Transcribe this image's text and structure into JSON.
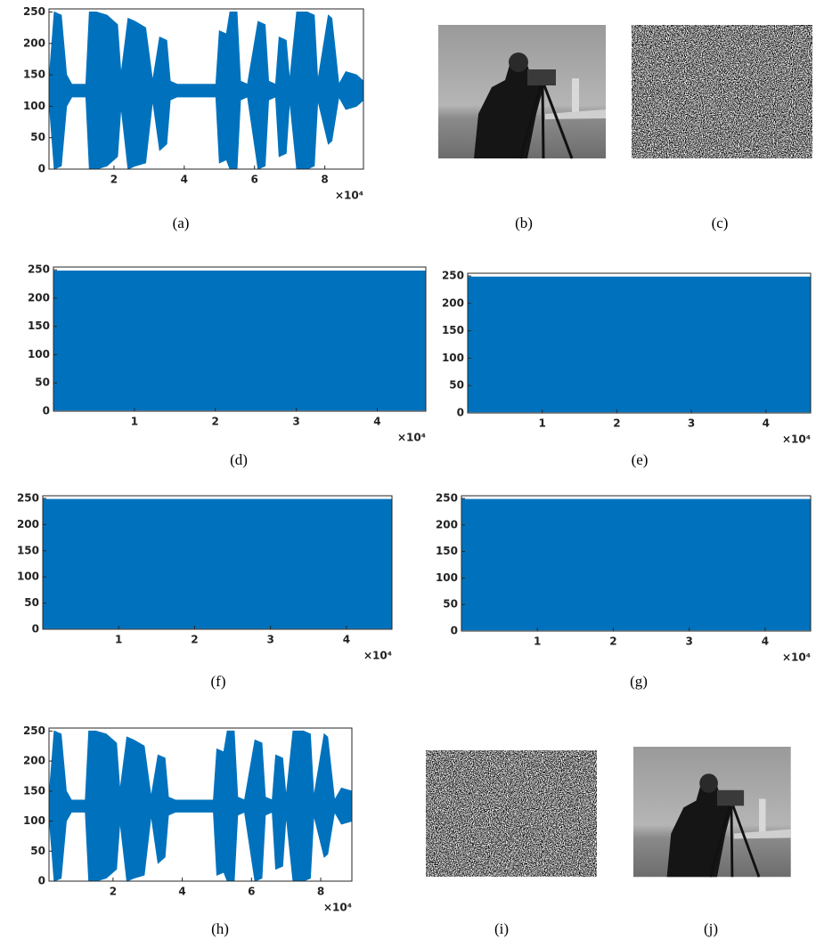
{
  "chart_data": [
    {
      "type": "envelope",
      "caption": "(a)",
      "color": "#0072bd",
      "x": [
        0.15,
        0.3,
        0.5,
        0.65,
        0.8,
        1.2,
        1.3,
        1.5,
        1.8,
        2.1,
        2.2,
        2.4,
        2.6,
        2.9,
        3.1,
        3.3,
        3.5,
        3.6,
        3.8,
        4.9,
        5.0,
        5.2,
        5.3,
        5.5,
        5.6,
        5.8,
        6.1,
        6.3,
        6.4,
        6.6,
        6.7,
        6.9,
        7.0,
        7.2,
        7.5,
        7.7,
        7.8,
        8.1,
        8.2,
        8.4,
        8.6,
        8.9,
        9.1
      ],
      "max": [
        140,
        250,
        245,
        150,
        135,
        135,
        250,
        250,
        245,
        230,
        150,
        240,
        235,
        225,
        140,
        210,
        205,
        140,
        135,
        135,
        220,
        215,
        250,
        250,
        140,
        135,
        235,
        230,
        140,
        135,
        210,
        205,
        140,
        250,
        250,
        245,
        140,
        245,
        240,
        135,
        155,
        150,
        140
      ],
      "min": [
        110,
        0,
        5,
        100,
        115,
        115,
        0,
        0,
        5,
        20,
        100,
        0,
        5,
        10,
        110,
        30,
        40,
        110,
        115,
        115,
        10,
        15,
        0,
        0,
        110,
        115,
        0,
        5,
        110,
        115,
        20,
        25,
        110,
        0,
        0,
        5,
        110,
        40,
        45,
        115,
        95,
        100,
        110
      ],
      "xlim": [
        0.15,
        9.1
      ],
      "ylim": [
        0,
        255
      ],
      "xticks": [
        2,
        4,
        6,
        8
      ],
      "yticks": [
        0,
        50,
        100,
        150,
        200,
        250
      ],
      "x_multiplier": "×10⁴"
    },
    {
      "type": "envelope",
      "caption": "(d)",
      "color": "#0072bd",
      "x": [
        0,
        4.6
      ],
      "max": [
        248,
        248
      ],
      "min": [
        2,
        2
      ],
      "xlim": [
        0,
        4.6
      ],
      "ylim": [
        0,
        255
      ],
      "xticks": [
        1,
        2,
        3,
        4
      ],
      "yticks": [
        0,
        50,
        100,
        150,
        200,
        250
      ],
      "x_multiplier": "×10⁴"
    },
    {
      "type": "envelope",
      "caption": "(e)",
      "color": "#0072bd",
      "x": [
        0,
        4.6
      ],
      "max": [
        248,
        248
      ],
      "min": [
        2,
        2
      ],
      "xlim": [
        0,
        4.6
      ],
      "ylim": [
        0,
        255
      ],
      "xticks": [
        1,
        2,
        3,
        4
      ],
      "yticks": [
        0,
        50,
        100,
        150,
        200,
        250
      ],
      "x_multiplier": "×10⁴"
    },
    {
      "type": "envelope",
      "caption": "(f)",
      "color": "#0072bd",
      "x": [
        0,
        4.6
      ],
      "max": [
        248,
        248
      ],
      "min": [
        2,
        2
      ],
      "xlim": [
        0,
        4.6
      ],
      "ylim": [
        0,
        255
      ],
      "xticks": [
        1,
        2,
        3,
        4
      ],
      "yticks": [
        0,
        50,
        100,
        150,
        200,
        250
      ],
      "x_multiplier": "×10⁴"
    },
    {
      "type": "envelope",
      "caption": "(g)",
      "color": "#0072bd",
      "x": [
        0,
        4.6
      ],
      "max": [
        248,
        248
      ],
      "min": [
        2,
        2
      ],
      "xlim": [
        0,
        4.6
      ],
      "ylim": [
        0,
        255
      ],
      "xticks": [
        1,
        2,
        3,
        4
      ],
      "yticks": [
        0,
        50,
        100,
        150,
        200,
        250
      ],
      "x_multiplier": "×10⁴"
    },
    {
      "type": "envelope",
      "caption": "(h)",
      "color": "#0072bd",
      "x": [
        0.15,
        0.3,
        0.5,
        0.65,
        0.8,
        1.2,
        1.3,
        1.5,
        1.8,
        2.1,
        2.2,
        2.4,
        2.6,
        2.9,
        3.1,
        3.3,
        3.5,
        3.6,
        3.8,
        4.9,
        5.0,
        5.2,
        5.3,
        5.5,
        5.6,
        5.8,
        6.1,
        6.3,
        6.4,
        6.6,
        6.7,
        6.9,
        7.0,
        7.2,
        7.5,
        7.7,
        7.8,
        8.1,
        8.2,
        8.4,
        8.6,
        8.9
      ],
      "max": [
        140,
        250,
        245,
        150,
        135,
        135,
        250,
        250,
        245,
        230,
        150,
        240,
        235,
        225,
        140,
        210,
        205,
        140,
        135,
        135,
        220,
        215,
        250,
        250,
        140,
        135,
        235,
        230,
        140,
        135,
        210,
        205,
        140,
        250,
        250,
        245,
        140,
        245,
        240,
        135,
        155,
        150
      ],
      "min": [
        110,
        0,
        5,
        100,
        115,
        115,
        0,
        0,
        5,
        20,
        100,
        0,
        5,
        10,
        110,
        30,
        40,
        110,
        115,
        115,
        10,
        15,
        0,
        0,
        110,
        115,
        0,
        5,
        110,
        115,
        20,
        25,
        110,
        0,
        0,
        5,
        110,
        40,
        45,
        115,
        95,
        100
      ],
      "xlim": [
        0.15,
        8.9
      ],
      "ylim": [
        0,
        255
      ],
      "xticks": [
        2,
        4,
        6,
        8
      ],
      "yticks": [
        0,
        50,
        100,
        150,
        200,
        250
      ],
      "x_multiplier": "×10⁴"
    }
  ],
  "images": [
    {
      "caption": "(b)"
    },
    {
      "caption": "(c)"
    },
    {
      "caption": "(i)"
    },
    {
      "caption": "(j)"
    }
  ]
}
